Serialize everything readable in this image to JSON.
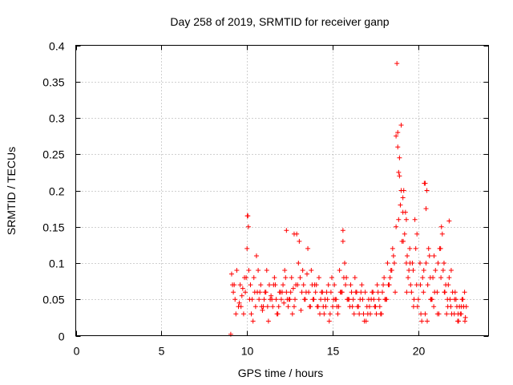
{
  "chart_data": {
    "type": "scatter",
    "title": "Day 258 of 2019, SRMTID for receiver ganp",
    "xlabel": "GPS time / hours",
    "ylabel": "SRMTID / TECUs",
    "xlim": [
      0,
      24.1
    ],
    "ylim": [
      0,
      0.4
    ],
    "x_ticks": [
      0,
      5,
      10,
      15,
      20
    ],
    "x_tick_labels": [
      "0",
      "5",
      "10",
      "15",
      "20"
    ],
    "y_ticks": [
      0,
      0.05,
      0.1,
      0.15,
      0.2,
      0.25,
      0.3,
      0.35,
      0.4
    ],
    "y_tick_labels": [
      "0",
      "0.05",
      "0.1",
      "0.15",
      "0.2",
      "0.25",
      "0.3",
      "0.35",
      "0.4"
    ],
    "grid": true,
    "marker": "plus",
    "color": "#ff0000",
    "series": [
      {
        "name": "SRMTID",
        "x": [
          9.1,
          9.2,
          9.3,
          9.4,
          9.5,
          9.6,
          9.7,
          9.8,
          9.9,
          10.0,
          10.05,
          10.1,
          10.2,
          10.3,
          10.4,
          10.5,
          10.6,
          10.7,
          10.8,
          10.9,
          11.0,
          11.1,
          11.2,
          11.3,
          11.4,
          11.5,
          11.6,
          11.7,
          11.8,
          11.9,
          12.0,
          12.1,
          12.2,
          12.3,
          12.4,
          12.5,
          12.6,
          12.7,
          12.8,
          12.9,
          13.0,
          13.1,
          13.2,
          13.3,
          13.4,
          13.5,
          13.6,
          13.7,
          13.8,
          13.9,
          14.0,
          14.1,
          14.2,
          14.3,
          14.4,
          14.5,
          14.6,
          14.7,
          14.8,
          14.9,
          15.0,
          15.1,
          15.2,
          15.3,
          15.4,
          15.5,
          15.6,
          15.7,
          15.8,
          15.9,
          16.0,
          16.1,
          16.2,
          16.3,
          16.4,
          16.5,
          16.6,
          16.7,
          16.8,
          16.9,
          17.0,
          17.1,
          17.2,
          17.3,
          17.4,
          17.5,
          17.6,
          17.7,
          17.8,
          17.9,
          18.0,
          18.1,
          18.2,
          18.3,
          18.4,
          18.5,
          18.6,
          18.7,
          18.75,
          18.8,
          18.9,
          19.0,
          19.1,
          19.2,
          19.3,
          19.4,
          19.5,
          19.6,
          19.7,
          19.8,
          19.9,
          20.0,
          20.1,
          20.2,
          20.3,
          20.4,
          20.5,
          20.6,
          20.7,
          20.8,
          20.9,
          21.0,
          21.1,
          21.2,
          21.3,
          21.4,
          21.5,
          21.6,
          21.7,
          21.8,
          21.9,
          22.0,
          22.1,
          22.2,
          22.3,
          22.4,
          22.5,
          22.6,
          22.7,
          22.8,
          9.15,
          9.35,
          9.55,
          9.75,
          9.95,
          10.15,
          10.35,
          10.55,
          10.75,
          10.95,
          11.15,
          11.35,
          11.55,
          11.75,
          11.95,
          12.15,
          12.35,
          12.55,
          12.75,
          12.95,
          13.15,
          13.35,
          13.55,
          13.75,
          13.95,
          14.15,
          14.35,
          14.55,
          14.75,
          14.95,
          15.15,
          15.35,
          15.55,
          15.75,
          15.95,
          16.15,
          16.35,
          16.55,
          16.75,
          16.95,
          17.15,
          17.35,
          17.55,
          17.75,
          17.95,
          18.15,
          18.35,
          18.55,
          18.65,
          18.85,
          18.95,
          19.05,
          19.15,
          19.25,
          19.35,
          19.45,
          19.55,
          19.65,
          19.75,
          19.85,
          19.95,
          20.15,
          20.25,
          20.35,
          20.45,
          20.55,
          20.65,
          20.75,
          20.85,
          20.95,
          21.15,
          21.25,
          21.35,
          21.45,
          21.55,
          21.65,
          21.75,
          21.85,
          21.95,
          22.15,
          22.25,
          22.35,
          22.45,
          22.55,
          22.65,
          22.75,
          10.02,
          10.08,
          12.3,
          12.75,
          13.05,
          15.6,
          18.7,
          18.8,
          18.9,
          18.85,
          19.0,
          19.1,
          19.3,
          20.4,
          20.45,
          21.8,
          9.05,
          9.25,
          9.65,
          9.85,
          10.25,
          10.45,
          10.65,
          10.85,
          11.05,
          11.25,
          11.45,
          11.65,
          11.85,
          12.05,
          12.25,
          12.45,
          12.65,
          12.85,
          13.25,
          13.45,
          13.65,
          13.85,
          14.05,
          14.25,
          14.45,
          14.65,
          14.85,
          15.05,
          15.25,
          15.45,
          15.65,
          15.85,
          16.05,
          16.25,
          16.45,
          16.65,
          16.85,
          17.05,
          17.25,
          17.45,
          17.65,
          17.85,
          18.05,
          18.25,
          18.45,
          19.12,
          19.32,
          19.52,
          19.72,
          19.92,
          20.12,
          20.32,
          20.52,
          20.72,
          20.92,
          21.12,
          21.32,
          21.52,
          21.72,
          21.92,
          22.12,
          22.32,
          22.52,
          22.72
        ],
        "y": [
          0.085,
          0.06,
          0.05,
          0.09,
          0.04,
          0.07,
          0.055,
          0.03,
          0.06,
          0.12,
          0.165,
          0.09,
          0.07,
          0.05,
          0.08,
          0.04,
          0.06,
          0.05,
          0.07,
          0.035,
          0.05,
          0.06,
          0.04,
          0.07,
          0.055,
          0.04,
          0.08,
          0.05,
          0.03,
          0.06,
          0.05,
          0.07,
          0.09,
          0.06,
          0.04,
          0.05,
          0.08,
          0.065,
          0.05,
          0.14,
          0.1,
          0.08,
          0.06,
          0.07,
          0.05,
          0.085,
          0.06,
          0.04,
          0.07,
          0.05,
          0.06,
          0.04,
          0.08,
          0.05,
          0.06,
          0.03,
          0.04,
          0.05,
          0.02,
          0.06,
          0.04,
          0.07,
          0.05,
          0.03,
          0.09,
          0.06,
          0.13,
          0.1,
          0.08,
          0.05,
          0.04,
          0.06,
          0.05,
          0.08,
          0.06,
          0.04,
          0.05,
          0.07,
          0.03,
          0.06,
          0.04,
          0.05,
          0.03,
          0.06,
          0.05,
          0.04,
          0.07,
          0.05,
          0.03,
          0.06,
          0.08,
          0.05,
          0.1,
          0.07,
          0.09,
          0.12,
          0.1,
          0.15,
          0.375,
          0.28,
          0.22,
          0.29,
          0.19,
          0.14,
          0.1,
          0.08,
          0.12,
          0.06,
          0.09,
          0.16,
          0.07,
          0.05,
          0.1,
          0.02,
          0.06,
          0.03,
          0.2,
          0.12,
          0.08,
          0.05,
          0.04,
          0.09,
          0.06,
          0.03,
          0.12,
          0.14,
          0.1,
          0.07,
          0.05,
          0.08,
          0.04,
          0.06,
          0.03,
          0.05,
          0.02,
          0.04,
          0.03,
          0.05,
          0.06,
          0.04,
          0.07,
          0.03,
          0.045,
          0.065,
          0.08,
          0.05,
          0.02,
          0.11,
          0.06,
          0.04,
          0.09,
          0.05,
          0.07,
          0.03,
          0.06,
          0.045,
          0.05,
          0.06,
          0.04,
          0.07,
          0.035,
          0.05,
          0.12,
          0.09,
          0.07,
          0.04,
          0.06,
          0.05,
          0.07,
          0.08,
          0.05,
          0.04,
          0.06,
          0.07,
          0.05,
          0.04,
          0.06,
          0.03,
          0.05,
          0.02,
          0.04,
          0.06,
          0.03,
          0.04,
          0.07,
          0.05,
          0.08,
          0.11,
          0.06,
          0.16,
          0.18,
          0.13,
          0.2,
          0.17,
          0.11,
          0.09,
          0.07,
          0.1,
          0.05,
          0.12,
          0.04,
          0.03,
          0.08,
          0.21,
          0.1,
          0.07,
          0.11,
          0.05,
          0.08,
          0.06,
          0.1,
          0.12,
          0.15,
          0.09,
          0.06,
          0.03,
          0.07,
          0.05,
          0.03,
          0.06,
          0.04,
          0.02,
          0.03,
          0.05,
          0.04,
          0.025,
          0.165,
          0.15,
          0.145,
          0.14,
          0.13,
          0.145,
          0.275,
          0.26,
          0.245,
          0.225,
          0.2,
          0.17,
          0.16,
          0.21,
          0.175,
          0.158,
          0.002,
          0.07,
          0.04,
          0.08,
          0.03,
          0.06,
          0.09,
          0.04,
          0.06,
          0.02,
          0.05,
          0.07,
          0.04,
          0.06,
          0.08,
          0.05,
          0.03,
          0.07,
          0.09,
          0.06,
          0.04,
          0.05,
          0.07,
          0.03,
          0.04,
          0.06,
          0.03,
          0.05,
          0.04,
          0.06,
          0.08,
          0.05,
          0.07,
          0.03,
          0.04,
          0.06,
          0.02,
          0.03,
          0.05,
          0.04,
          0.06,
          0.03,
          0.05,
          0.07,
          0.09,
          0.13,
          0.06,
          0.1,
          0.04,
          0.14,
          0.07,
          0.09,
          0.02,
          0.05,
          0.11,
          0.03,
          0.08,
          0.06,
          0.04,
          0.09,
          0.05,
          0.03,
          0.04,
          0.02
        ]
      }
    ]
  }
}
